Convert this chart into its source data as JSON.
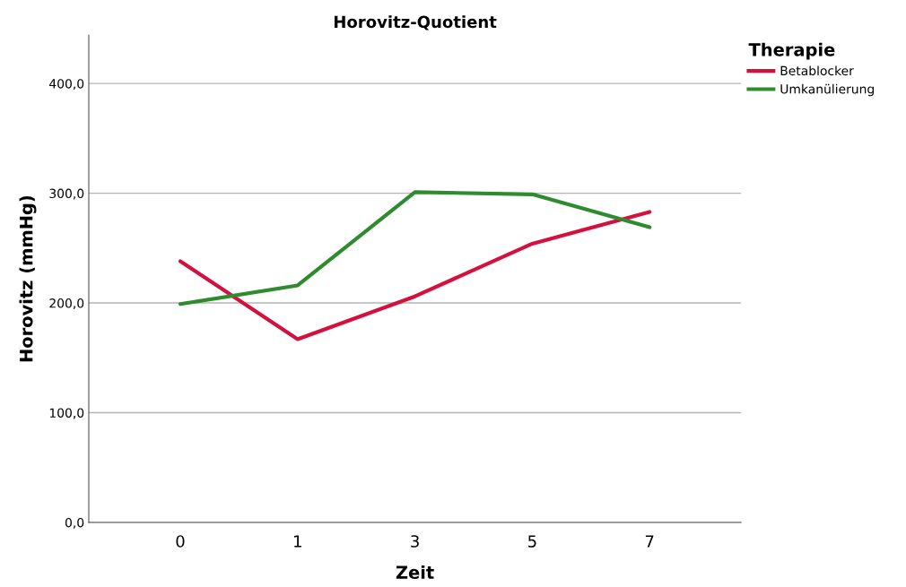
{
  "chart_data": {
    "type": "line",
    "title": "Horovitz-Quotient",
    "xlabel": "Zeit",
    "ylabel": "Horovitz (mmHg)",
    "legend_title": "Therapie",
    "categories": [
      "0",
      "1",
      "3",
      "5",
      "7"
    ],
    "series": [
      {
        "name": "Betablocker",
        "color": "#d5103e",
        "values": [
          238,
          167,
          206,
          254,
          283
        ]
      },
      {
        "name": "Umkanülierung",
        "color": "#2e8b2e",
        "values": [
          199,
          216,
          301,
          299,
          269
        ]
      }
    ],
    "ylim": [
      0,
      444
    ],
    "yticks": [
      {
        "value": 0,
        "label": "0,0"
      },
      {
        "value": 100,
        "label": "100,0"
      },
      {
        "value": 200,
        "label": "200,0"
      },
      {
        "value": 300,
        "label": "300,0"
      },
      {
        "value": 400,
        "label": "400,0"
      }
    ],
    "grid": "y",
    "legend": "top right",
    "marker": "none",
    "line_style": "solid"
  }
}
